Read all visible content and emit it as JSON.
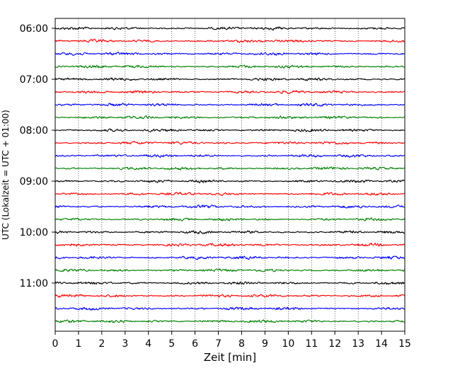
{
  "chart_data": {
    "type": "line",
    "title": "",
    "xlabel": "Zeit  [min]",
    "ylabel": "UTC (Lokalzeit = UTC + 01:00)",
    "xlim": [
      0,
      15
    ],
    "x_ticks": [
      0,
      1,
      2,
      3,
      4,
      5,
      6,
      7,
      8,
      9,
      10,
      11,
      12,
      13,
      14,
      15
    ],
    "x_tick_labels": [
      "0",
      "1",
      "2",
      "3",
      "4",
      "5",
      "6",
      "7",
      "8",
      "9",
      "10",
      "11",
      "12",
      "13",
      "14",
      "15"
    ],
    "y_tick_labels": [
      "06:00",
      "07:00",
      "08:00",
      "09:00",
      "10:00",
      "11:00"
    ],
    "grid": "vertical-dotted",
    "trace_interval_minutes": 15,
    "trace_start_times": [
      "06:00",
      "06:15",
      "06:30",
      "06:45",
      "07:00",
      "07:15",
      "07:30",
      "07:45",
      "08:00",
      "08:15",
      "08:30",
      "08:45",
      "09:00",
      "09:15",
      "09:30",
      "09:45",
      "10:00",
      "10:15",
      "10:30",
      "10:45",
      "11:00",
      "11:15",
      "11:30",
      "11:45"
    ],
    "trace_colors": [
      "#000000",
      "#ff0000",
      "#0000ff",
      "#008000"
    ]
  }
}
